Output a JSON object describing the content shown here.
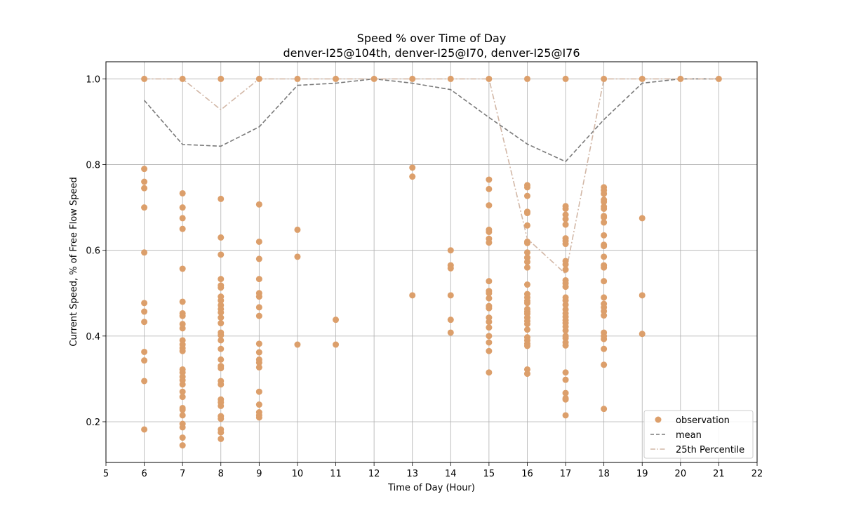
{
  "chart_data": {
    "type": "scatter",
    "title": "Speed % over Time of Day",
    "subtitle": "denver-I25@104th, denver-I25@I70, denver-I25@I76",
    "xlabel": "Time of Day (Hour)",
    "ylabel": "Current Speed, % of Free Flow Speed",
    "xlim": [
      5,
      22
    ],
    "ylim": [
      0.105,
      1.04
    ],
    "xticks": [
      5,
      6,
      7,
      8,
      9,
      10,
      11,
      12,
      13,
      14,
      15,
      16,
      17,
      18,
      19,
      20,
      21,
      22
    ],
    "yticks": [
      0.2,
      0.4,
      0.6,
      0.8,
      1.0
    ],
    "grid": true,
    "legend_position": "lower-right",
    "colors": {
      "observation": "#dc9f6b",
      "mean": "#7a7a7a",
      "percentile": "#d2b7a6",
      "grid": "#b0b0b0"
    },
    "series": [
      {
        "name": "observation",
        "kind": "scatter",
        "points": [
          [
            6,
            1.0
          ],
          [
            6,
            0.79
          ],
          [
            6,
            0.76
          ],
          [
            6,
            0.745
          ],
          [
            6,
            0.7
          ],
          [
            6,
            0.595
          ],
          [
            6,
            0.477
          ],
          [
            6,
            0.457
          ],
          [
            6,
            0.433
          ],
          [
            6,
            0.363
          ],
          [
            6,
            0.343
          ],
          [
            6,
            0.295
          ],
          [
            6,
            0.182
          ],
          [
            7,
            1.0
          ],
          [
            7,
            0.733
          ],
          [
            7,
            0.7
          ],
          [
            7,
            0.675
          ],
          [
            7,
            0.65
          ],
          [
            7,
            0.557
          ],
          [
            7,
            0.48
          ],
          [
            7,
            0.453
          ],
          [
            7,
            0.447
          ],
          [
            7,
            0.428
          ],
          [
            7,
            0.418
          ],
          [
            7,
            0.39
          ],
          [
            7,
            0.38
          ],
          [
            7,
            0.372
          ],
          [
            7,
            0.365
          ],
          [
            7,
            0.322
          ],
          [
            7,
            0.315
          ],
          [
            7,
            0.305
          ],
          [
            7,
            0.297
          ],
          [
            7,
            0.287
          ],
          [
            7,
            0.27
          ],
          [
            7,
            0.258
          ],
          [
            7,
            0.232
          ],
          [
            7,
            0.228
          ],
          [
            7,
            0.215
          ],
          [
            7,
            0.195
          ],
          [
            7,
            0.187
          ],
          [
            7,
            0.163
          ],
          [
            7,
            0.145
          ],
          [
            8,
            1.0
          ],
          [
            8,
            0.72
          ],
          [
            8,
            0.63
          ],
          [
            8,
            0.59
          ],
          [
            8,
            0.533
          ],
          [
            8,
            0.518
          ],
          [
            8,
            0.513
          ],
          [
            8,
            0.492
          ],
          [
            8,
            0.483
          ],
          [
            8,
            0.472
          ],
          [
            8,
            0.463
          ],
          [
            8,
            0.455
          ],
          [
            8,
            0.443
          ],
          [
            8,
            0.43
          ],
          [
            8,
            0.408
          ],
          [
            8,
            0.402
          ],
          [
            8,
            0.39
          ],
          [
            8,
            0.37
          ],
          [
            8,
            0.345
          ],
          [
            8,
            0.33
          ],
          [
            8,
            0.325
          ],
          [
            8,
            0.295
          ],
          [
            8,
            0.287
          ],
          [
            8,
            0.252
          ],
          [
            8,
            0.245
          ],
          [
            8,
            0.237
          ],
          [
            8,
            0.213
          ],
          [
            8,
            0.207
          ],
          [
            8,
            0.182
          ],
          [
            8,
            0.175
          ],
          [
            8,
            0.16
          ],
          [
            9,
            1.0
          ],
          [
            9,
            0.707
          ],
          [
            9,
            0.62
          ],
          [
            9,
            0.58
          ],
          [
            9,
            0.533
          ],
          [
            9,
            0.5
          ],
          [
            9,
            0.492
          ],
          [
            9,
            0.467
          ],
          [
            9,
            0.447
          ],
          [
            9,
            0.382
          ],
          [
            9,
            0.362
          ],
          [
            9,
            0.345
          ],
          [
            9,
            0.338
          ],
          [
            9,
            0.327
          ],
          [
            9,
            0.27
          ],
          [
            9,
            0.24
          ],
          [
            9,
            0.222
          ],
          [
            9,
            0.215
          ],
          [
            9,
            0.21
          ],
          [
            10,
            1.0
          ],
          [
            10,
            0.648
          ],
          [
            10,
            0.585
          ],
          [
            10,
            0.38
          ],
          [
            11,
            1.0
          ],
          [
            11,
            0.438
          ],
          [
            11,
            0.38
          ],
          [
            12,
            1.0
          ],
          [
            13,
            1.0
          ],
          [
            13,
            0.793
          ],
          [
            13,
            0.772
          ],
          [
            13,
            0.495
          ],
          [
            14,
            1.0
          ],
          [
            14,
            0.6
          ],
          [
            14,
            0.565
          ],
          [
            14,
            0.558
          ],
          [
            14,
            0.495
          ],
          [
            14,
            0.438
          ],
          [
            14,
            0.408
          ],
          [
            15,
            1.0
          ],
          [
            15,
            0.765
          ],
          [
            15,
            0.743
          ],
          [
            15,
            0.705
          ],
          [
            15,
            0.648
          ],
          [
            15,
            0.643
          ],
          [
            15,
            0.627
          ],
          [
            15,
            0.618
          ],
          [
            15,
            0.528
          ],
          [
            15,
            0.505
          ],
          [
            15,
            0.5
          ],
          [
            15,
            0.488
          ],
          [
            15,
            0.47
          ],
          [
            15,
            0.465
          ],
          [
            15,
            0.443
          ],
          [
            15,
            0.433
          ],
          [
            15,
            0.42
          ],
          [
            15,
            0.4
          ],
          [
            15,
            0.385
          ],
          [
            15,
            0.365
          ],
          [
            15,
            0.315
          ],
          [
            16,
            1.0
          ],
          [
            16,
            0.752
          ],
          [
            16,
            0.747
          ],
          [
            16,
            0.727
          ],
          [
            16,
            0.69
          ],
          [
            16,
            0.687
          ],
          [
            16,
            0.658
          ],
          [
            16,
            0.62
          ],
          [
            16,
            0.617
          ],
          [
            16,
            0.595
          ],
          [
            16,
            0.583
          ],
          [
            16,
            0.573
          ],
          [
            16,
            0.56
          ],
          [
            16,
            0.52
          ],
          [
            16,
            0.498
          ],
          [
            16,
            0.49
          ],
          [
            16,
            0.482
          ],
          [
            16,
            0.477
          ],
          [
            16,
            0.463
          ],
          [
            16,
            0.457
          ],
          [
            16,
            0.452
          ],
          [
            16,
            0.443
          ],
          [
            16,
            0.435
          ],
          [
            16,
            0.428
          ],
          [
            16,
            0.415
          ],
          [
            16,
            0.397
          ],
          [
            16,
            0.39
          ],
          [
            16,
            0.382
          ],
          [
            16,
            0.377
          ],
          [
            16,
            0.322
          ],
          [
            16,
            0.312
          ],
          [
            17,
            1.0
          ],
          [
            17,
            0.703
          ],
          [
            17,
            0.697
          ],
          [
            17,
            0.683
          ],
          [
            17,
            0.673
          ],
          [
            17,
            0.66
          ],
          [
            17,
            0.628
          ],
          [
            17,
            0.622
          ],
          [
            17,
            0.615
          ],
          [
            17,
            0.575
          ],
          [
            17,
            0.567
          ],
          [
            17,
            0.555
          ],
          [
            17,
            0.53
          ],
          [
            17,
            0.523
          ],
          [
            17,
            0.515
          ],
          [
            17,
            0.49
          ],
          [
            17,
            0.483
          ],
          [
            17,
            0.473
          ],
          [
            17,
            0.462
          ],
          [
            17,
            0.453
          ],
          [
            17,
            0.445
          ],
          [
            17,
            0.437
          ],
          [
            17,
            0.43
          ],
          [
            17,
            0.422
          ],
          [
            17,
            0.413
          ],
          [
            17,
            0.4
          ],
          [
            17,
            0.395
          ],
          [
            17,
            0.385
          ],
          [
            17,
            0.378
          ],
          [
            17,
            0.315
          ],
          [
            17,
            0.298
          ],
          [
            17,
            0.267
          ],
          [
            17,
            0.255
          ],
          [
            17,
            0.252
          ],
          [
            17,
            0.215
          ],
          [
            18,
            1.0
          ],
          [
            18,
            0.747
          ],
          [
            18,
            0.74
          ],
          [
            18,
            0.732
          ],
          [
            18,
            0.718
          ],
          [
            18,
            0.713
          ],
          [
            18,
            0.702
          ],
          [
            18,
            0.697
          ],
          [
            18,
            0.68
          ],
          [
            18,
            0.677
          ],
          [
            18,
            0.665
          ],
          [
            18,
            0.635
          ],
          [
            18,
            0.613
          ],
          [
            18,
            0.61
          ],
          [
            18,
            0.585
          ],
          [
            18,
            0.565
          ],
          [
            18,
            0.56
          ],
          [
            18,
            0.528
          ],
          [
            18,
            0.49
          ],
          [
            18,
            0.475
          ],
          [
            18,
            0.467
          ],
          [
            18,
            0.458
          ],
          [
            18,
            0.448
          ],
          [
            18,
            0.408
          ],
          [
            18,
            0.4
          ],
          [
            18,
            0.393
          ],
          [
            18,
            0.37
          ],
          [
            18,
            0.333
          ],
          [
            18,
            0.23
          ],
          [
            19,
            1.0
          ],
          [
            19,
            0.675
          ],
          [
            19,
            0.495
          ],
          [
            19,
            0.405
          ],
          [
            20,
            1.0
          ],
          [
            21,
            1.0
          ]
        ]
      },
      {
        "name": "mean",
        "kind": "line",
        "style": "dashed",
        "x": [
          6,
          7,
          8,
          9,
          10,
          11,
          12,
          13,
          14,
          15,
          16,
          17,
          18,
          19,
          20,
          21
        ],
        "y": [
          0.95,
          0.847,
          0.843,
          0.888,
          0.985,
          0.99,
          1.0,
          0.99,
          0.975,
          0.91,
          0.848,
          0.807,
          0.905,
          0.99,
          1.0,
          1.0
        ]
      },
      {
        "name": "25th Percentile",
        "kind": "line",
        "style": "dashdot",
        "x": [
          6,
          7,
          8,
          9,
          10,
          11,
          12,
          13,
          14,
          15,
          16,
          17,
          18,
          19,
          20,
          21
        ],
        "y": [
          1.0,
          1.0,
          0.928,
          1.0,
          1.0,
          1.0,
          1.0,
          1.0,
          1.0,
          1.0,
          0.627,
          0.545,
          1.0,
          1.0,
          1.0,
          1.0
        ]
      }
    ],
    "legend": [
      "observation",
      "mean",
      "25th Percentile"
    ]
  }
}
